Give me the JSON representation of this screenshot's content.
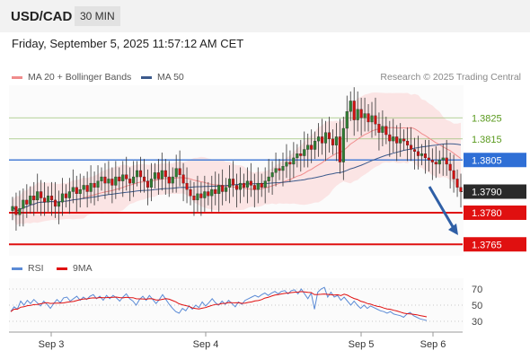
{
  "header": {
    "symbol": "USD/CAD",
    "timeframe": "30 MIN"
  },
  "datetime": "Friday, September 5, 2025 11:57:12 AM CET",
  "legend": [
    {
      "label": "MA 20 + Bollinger Bands",
      "color": "#f08c8c"
    },
    {
      "label": "MA 50",
      "color": "#3c5a8c"
    }
  ],
  "rsi_legend": [
    {
      "label": "RSI",
      "color": "#5b8bd6"
    },
    {
      "label": "9MA",
      "color": "#e01010"
    }
  ],
  "credit": "Research © 2025 Trading Central",
  "chart_data": {
    "type": "candlestick",
    "x_ticks": [
      "Sep 3",
      "Sep 4",
      "Sep 5",
      "Sep 6"
    ],
    "levels": [
      {
        "value": 1.3825,
        "label": "1.3825",
        "kind": "resistance"
      },
      {
        "value": 1.3815,
        "label": "1.3815",
        "kind": "resistance"
      },
      {
        "value": 1.3805,
        "label": "1.3805",
        "kind": "pivot"
      },
      {
        "value": 1.379,
        "label": "1.3790",
        "kind": "last"
      },
      {
        "value": 1.378,
        "label": "1.3780",
        "kind": "support"
      },
      {
        "value": 1.3765,
        "label": "1.3765",
        "kind": "support"
      }
    ],
    "closes": [
      1.3783,
      1.3779,
      1.3782,
      1.3786,
      1.3784,
      1.3788,
      1.3786,
      1.379,
      1.3787,
      1.3785,
      1.3788,
      1.3786,
      1.3783,
      1.3785,
      1.3789,
      1.3787,
      1.379,
      1.3792,
      1.3789,
      1.3791,
      1.3793,
      1.379,
      1.3794,
      1.3792,
      1.3795,
      1.3797,
      1.3794,
      1.3796,
      1.3793,
      1.3797,
      1.3795,
      1.3798,
      1.3796,
      1.3794,
      1.3797,
      1.38,
      1.3797,
      1.3795,
      1.3792,
      1.3796,
      1.3799,
      1.3796,
      1.38,
      1.3797,
      1.3794,
      1.3797,
      1.3801,
      1.3798,
      1.3794,
      1.3791,
      1.3788,
      1.3786,
      1.3789,
      1.3787,
      1.379,
      1.3788,
      1.3791,
      1.3789,
      1.3793,
      1.379,
      1.3792,
      1.3796,
      1.3793,
      1.3791,
      1.3794,
      1.3792,
      1.3795,
      1.3793,
      1.3791,
      1.3794,
      1.3792,
      1.3795,
      1.3797,
      1.3799,
      1.3801,
      1.38,
      1.3802,
      1.3804,
      1.3803,
      1.3806,
      1.3808,
      1.3807,
      1.381,
      1.3812,
      1.381,
      1.3814,
      1.3816,
      1.3813,
      1.3818,
      1.3815,
      1.3812,
      1.3816,
      1.3804,
      1.382,
      1.3828,
      1.3833,
      1.3824,
      1.3829,
      1.3825,
      1.3827,
      1.3823,
      1.3826,
      1.3822,
      1.3818,
      1.3821,
      1.3817,
      1.3814,
      1.3816,
      1.3813,
      1.3815,
      1.3814,
      1.3812,
      1.381,
      1.3809,
      1.3807,
      1.3808,
      1.3806,
      1.3805,
      1.3804,
      1.3803,
      1.3805,
      1.3806,
      1.3803,
      1.38,
      1.3796,
      1.3792,
      1.379
    ],
    "rsi": [
      42,
      48,
      45,
      55,
      50,
      56,
      52,
      57,
      53,
      49,
      55,
      51,
      46,
      52,
      57,
      53,
      59,
      60,
      55,
      58,
      61,
      56,
      60,
      57,
      61,
      63,
      58,
      61,
      56,
      62,
      58,
      62,
      59,
      55,
      60,
      64,
      58,
      55,
      50,
      57,
      61,
      56,
      62,
      57,
      52,
      57,
      63,
      57,
      51,
      46,
      42,
      40,
      46,
      43,
      49,
      45,
      50,
      47,
      54,
      49,
      53,
      58,
      53,
      50,
      55,
      51,
      56,
      52,
      48,
      54,
      51,
      56,
      58,
      60,
      62,
      60,
      63,
      65,
      62,
      65,
      67,
      64,
      67,
      68,
      64,
      68,
      69,
      64,
      70,
      64,
      58,
      65,
      45,
      66,
      70,
      72,
      60,
      66,
      60,
      62,
      56,
      60,
      55,
      50,
      55,
      50,
      46,
      50,
      46,
      49,
      47,
      45,
      43,
      42,
      40,
      42,
      39,
      38,
      37,
      35,
      39,
      41,
      37,
      35,
      33,
      32,
      31
    ]
  },
  "rsi_axis": {
    "ticks": [
      70,
      50,
      30
    ]
  }
}
